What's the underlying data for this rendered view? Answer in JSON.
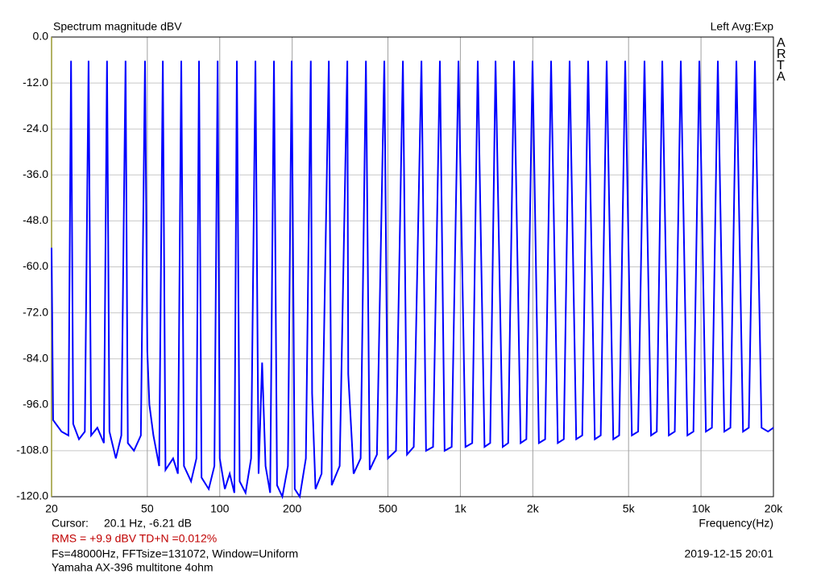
{
  "chart_data": {
    "type": "line",
    "title": "Spectrum magnitude dBV",
    "channel_label": "Left  Avg:Exp",
    "brand": "ARTA",
    "x_label": "Frequency(Hz)",
    "cursor_label": "Cursor:",
    "cursor_value": "20.1 Hz, -6.21 dB",
    "rms_line": "RMS =   +9.9 dBV   TD+N =0.012%",
    "settings_line": "Fs=48000Hz, FFTsize=131072, Window=Uniform",
    "timestamp": "2019-12-15  20:01",
    "note": "Yamaha AX-396 multitone 4ohm",
    "log_x": true,
    "grid": true,
    "color": "#0000ff",
    "xlim": [
      20,
      20000
    ],
    "ylim": [
      -120,
      0
    ],
    "xticks": [
      20,
      50,
      100,
      200,
      500,
      {
        "value": 1000,
        "label": "1k"
      },
      {
        "value": 2000,
        "label": "2k"
      },
      {
        "value": 5000,
        "label": "5k"
      },
      {
        "value": 10000,
        "label": "10k"
      },
      {
        "value": 20000,
        "label": "20k"
      }
    ],
    "yticks": [
      {
        "value": 0,
        "label": "0.0"
      },
      {
        "value": -12,
        "label": "-12.0"
      },
      {
        "value": -24,
        "label": "-24.0"
      },
      {
        "value": -36,
        "label": "-36.0"
      },
      {
        "value": -48,
        "label": "-48.0"
      },
      {
        "value": -60,
        "label": "-60.0"
      },
      {
        "value": -72,
        "label": "-72.0"
      },
      {
        "value": -84,
        "label": "-84.0"
      },
      {
        "value": -96,
        "label": "-96.0"
      },
      {
        "value": -108,
        "label": "-108.0"
      },
      {
        "value": -120,
        "label": "-120.0"
      }
    ],
    "x": [
      20,
      20.3,
      22,
      23.5,
      24.1,
      24.6,
      26,
      27.5,
      28.5,
      29.2,
      31,
      33,
      34,
      34.8,
      37,
      39,
      40.6,
      41.5,
      44,
      47,
      48.9,
      50,
      51,
      53,
      56,
      58,
      59.5,
      64,
      67,
      69.2,
      71,
      76,
      80,
      82,
      84,
      90,
      95,
      98,
      100,
      105,
      110,
      115,
      117.8,
      121,
      128,
      135,
      140.7,
      145,
      150,
      155,
      162,
      168,
      173,
      182,
      192,
      199,
      205,
      215,
      228,
      239,
      242,
      250,
      265,
      284,
      292,
      315,
      339,
      342,
      360,
      385,
      405,
      420,
      450,
      483,
      500,
      540,
      577,
      600,
      640,
      689,
      720,
      770,
      822,
      860,
      920,
      982,
      1050,
      1120,
      1181,
      1260,
      1330,
      1400,
      1500,
      1580,
      1671,
      1780,
      1880,
      1995,
      2120,
      2250,
      2382,
      2540,
      2690,
      2844,
      3030,
      3210,
      3396,
      3620,
      3830,
      4055,
      4320,
      4570,
      4842,
      5160,
      5480,
      5823,
      6200,
      6550,
      6904,
      7350,
      7780,
      8243,
      8780,
      9300,
      9843,
      10480,
      11100,
      11750,
      12500,
      13250,
      14030,
      14950,
      15800,
      16750,
      17850,
      19000,
      20000
    ],
    "values": [
      -55,
      -100,
      -103,
      -104,
      -6.2,
      -101,
      -105,
      -103,
      -6.2,
      -104,
      -102,
      -106,
      -6.2,
      -103,
      -110,
      -104,
      -6.2,
      -106,
      -108,
      -104,
      -6.2,
      -82,
      -96,
      -104,
      -112,
      -6.2,
      -113,
      -110,
      -114,
      -6.2,
      -112,
      -116,
      -110,
      -6.2,
      -115,
      -118,
      -112,
      -6.2,
      -110,
      -118,
      -114,
      -119,
      -6.2,
      -116,
      -119,
      -110,
      -6.2,
      -114,
      -85,
      -112,
      -119,
      -6.2,
      -117,
      -120,
      -112,
      -6.2,
      -118,
      -120,
      -110,
      -6.2,
      -93,
      -118,
      -114,
      -6.2,
      -117,
      -112,
      -6.2,
      -88,
      -114,
      -110,
      -6.2,
      -113,
      -109,
      -6.2,
      -110,
      -108,
      -6.2,
      -109,
      -107,
      -6.2,
      -108,
      -107,
      -6.2,
      -108,
      -107,
      -6.2,
      -107,
      -106,
      -6.2,
      -107,
      -106,
      -6.2,
      -107,
      -106,
      -6.2,
      -106,
      -105,
      -6.2,
      -106,
      -105,
      -6.2,
      -106,
      -105,
      -6.2,
      -105,
      -104,
      -6.2,
      -105,
      -104,
      -6.2,
      -105,
      -104,
      -6.2,
      -104,
      -103,
      -6.2,
      -104,
      -103,
      -6.2,
      -104,
      -103,
      -6.2,
      -104,
      -103,
      -6.2,
      -103,
      -102,
      -6.2,
      -103,
      -102,
      -6.2,
      -103,
      -102,
      -6.2,
      -102,
      -103,
      -102
    ]
  }
}
